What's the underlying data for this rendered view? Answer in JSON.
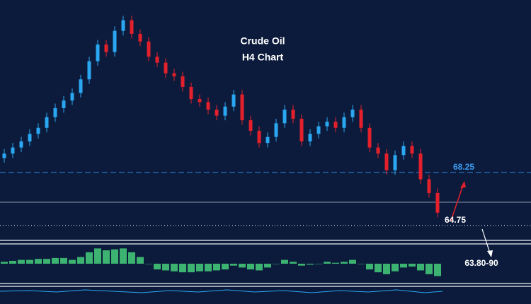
{
  "chart_data": {
    "type": "candlestick",
    "title": "Crude Oil",
    "subtitle": "H4 Chart",
    "up_color": "#2aa7f0",
    "down_color": "#e3202b",
    "open": [
      69.2,
      69.5,
      69.9,
      70.3,
      70.8,
      71.2,
      71.9,
      72.5,
      73.0,
      73.5,
      74.4,
      75.6,
      76.7,
      76.2,
      77.6,
      78.3,
      77.4,
      76.9,
      75.9,
      75.5,
      74.8,
      74.6,
      73.9,
      73.1,
      72.9,
      72.4,
      72.0,
      72.6,
      73.4,
      71.7,
      71.0,
      70.2,
      70.6,
      71.5,
      72.4,
      71.8,
      70.3,
      70.8,
      71.3,
      71.6,
      71.2,
      71.9,
      72.4,
      71.2,
      69.9,
      69.5,
      68.4,
      69.4,
      70.0,
      69.5,
      67.8,
      66.9
    ],
    "high": [
      69.8,
      70.2,
      70.6,
      71.1,
      71.5,
      72.2,
      72.8,
      73.3,
      73.8,
      74.7,
      75.9,
      77.0,
      77.0,
      77.9,
      78.6,
      78.6,
      77.7,
      77.2,
      76.2,
      75.8,
      75.1,
      74.9,
      74.2,
      73.4,
      73.2,
      72.7,
      72.9,
      73.7,
      73.7,
      72.0,
      71.3,
      70.9,
      71.8,
      72.7,
      72.7,
      72.1,
      71.1,
      71.6,
      71.9,
      71.9,
      72.2,
      72.7,
      72.7,
      71.5,
      70.2,
      69.8,
      69.7,
      70.3,
      70.3,
      69.8,
      68.1,
      67.2
    ],
    "low": [
      68.9,
      69.2,
      69.6,
      70.0,
      70.5,
      70.9,
      71.6,
      72.2,
      72.7,
      73.2,
      74.1,
      75.3,
      75.9,
      75.9,
      77.3,
      77.1,
      76.6,
      75.6,
      75.2,
      74.5,
      74.3,
      73.6,
      72.8,
      72.6,
      72.1,
      71.7,
      71.7,
      72.3,
      71.4,
      70.7,
      69.9,
      69.9,
      70.3,
      71.2,
      71.5,
      70.0,
      70.0,
      70.5,
      71.0,
      70.9,
      70.9,
      71.6,
      70.9,
      69.6,
      69.2,
      68.1,
      68.1,
      69.1,
      69.2,
      67.5,
      66.6,
      65.3
    ],
    "close": [
      69.5,
      69.9,
      70.3,
      70.8,
      71.2,
      71.9,
      72.5,
      73.0,
      73.5,
      74.4,
      75.6,
      76.7,
      76.2,
      77.6,
      78.3,
      77.4,
      76.9,
      75.9,
      75.5,
      74.8,
      74.6,
      73.9,
      73.1,
      72.9,
      72.4,
      72.0,
      72.6,
      73.4,
      71.7,
      71.0,
      70.2,
      70.6,
      71.5,
      72.4,
      71.8,
      70.3,
      70.8,
      71.3,
      71.6,
      71.2,
      71.9,
      72.4,
      71.2,
      69.9,
      69.5,
      68.4,
      69.4,
      70.0,
      69.5,
      67.8,
      66.9,
      65.6
    ],
    "levels": [
      68.25,
      64.75
    ],
    "target": "63.80-90",
    "indicator": {
      "type": "histogram",
      "color": "#3cb371",
      "values": [
        0.1,
        0.15,
        0.2,
        0.2,
        0.25,
        0.25,
        0.3,
        0.3,
        0.2,
        0.35,
        0.6,
        0.8,
        0.7,
        0.75,
        0.8,
        0.6,
        0.35,
        0.0,
        -0.3,
        -0.35,
        -0.4,
        -0.45,
        -0.45,
        -0.4,
        -0.4,
        -0.35,
        -0.3,
        -0.1,
        -0.2,
        -0.3,
        -0.35,
        -0.2,
        0.0,
        0.2,
        0.1,
        -0.1,
        -0.05,
        0.0,
        0.1,
        0.05,
        0.1,
        0.2,
        0.0,
        -0.3,
        -0.45,
        -0.55,
        -0.4,
        -0.2,
        -0.15,
        -0.35,
        -0.55,
        -0.65
      ]
    }
  }
}
